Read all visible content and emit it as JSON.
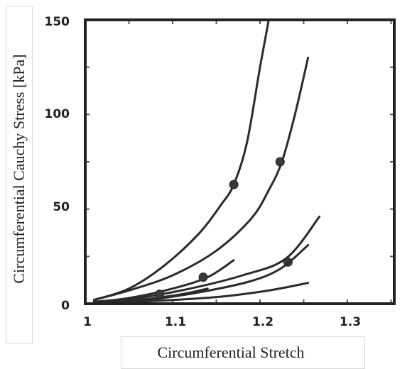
{
  "chart_data": {
    "type": "line",
    "xlabel": "Circumferential Stretch",
    "ylabel": "Circumferential Cauchy Stress [kPa]",
    "xlim": [
      1.0,
      1.35
    ],
    "ylim": [
      0,
      150
    ],
    "x_ticks": [
      "1",
      "1.1",
      "1.2",
      "1.3"
    ],
    "y_ticks": [
      "0",
      "50",
      "100",
      "150"
    ],
    "grid": false,
    "series": [
      {
        "x": [
          1.01,
          1.05,
          1.09,
          1.13,
          1.155,
          1.17,
          1.185,
          1.2,
          1.21
        ],
        "y": [
          2,
          8,
          20,
          37,
          52,
          63,
          85,
          125,
          150
        ],
        "markers": [
          [
            1.17,
            63
          ]
        ]
      },
      {
        "x": [
          1.01,
          1.05,
          1.1,
          1.15,
          1.19,
          1.21,
          1.225,
          1.24,
          1.255
        ],
        "y": [
          2,
          7,
          15,
          28,
          45,
          60,
          75,
          100,
          130
        ],
        "markers": [
          [
            1.223,
            75
          ]
        ]
      },
      {
        "x": [
          1.01,
          1.05,
          1.1,
          1.14,
          1.17
        ],
        "y": [
          1,
          3,
          8,
          14,
          23
        ],
        "markers": [
          [
            1.135,
            14
          ]
        ]
      },
      {
        "x": [
          1.01,
          1.06,
          1.12,
          1.18,
          1.23,
          1.268
        ],
        "y": [
          1,
          3,
          8,
          15,
          24,
          46
        ],
        "markers": [
          [
            1.232,
            22
          ]
        ]
      },
      {
        "x": [
          1.01,
          1.07,
          1.13,
          1.19,
          1.225,
          1.255
        ],
        "y": [
          0.5,
          2,
          6,
          12,
          19,
          31
        ],
        "markers": []
      },
      {
        "x": [
          1.01,
          1.08,
          1.15,
          1.21,
          1.255
        ],
        "y": [
          0.3,
          1.5,
          3.5,
          7,
          11
        ],
        "markers": []
      },
      {
        "x": [
          1.01,
          1.06,
          1.11,
          1.14
        ],
        "y": [
          0.5,
          2,
          5,
          8
        ],
        "markers": [
          [
            1.085,
            5
          ]
        ]
      }
    ]
  }
}
